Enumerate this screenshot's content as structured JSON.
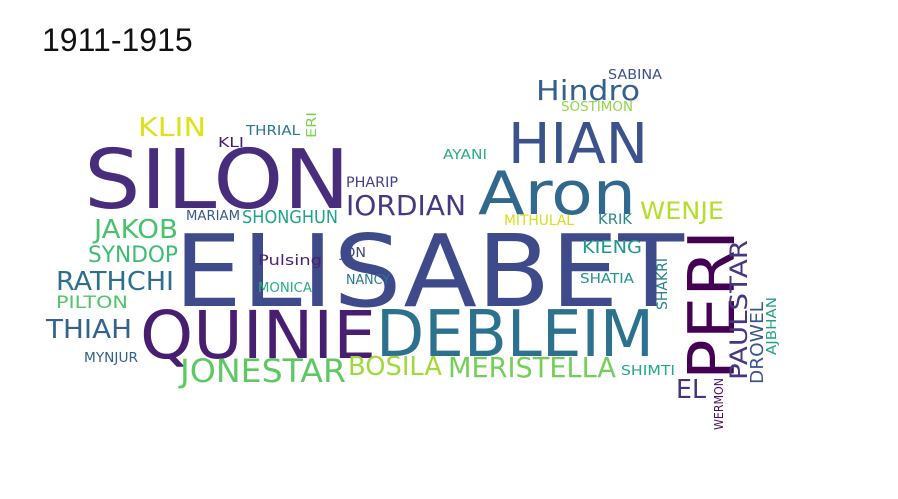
{
  "chart_data": {
    "type": "wordcloud",
    "title": "1911-1915",
    "words": [
      {
        "text": "ELISABET",
        "color": "#3e4a89"
      },
      {
        "text": "SILON",
        "color": "#472d7b"
      },
      {
        "text": "QUINIE",
        "color": "#481f70"
      },
      {
        "text": "DEBLEIM",
        "color": "#2c728e"
      },
      {
        "text": "PERI",
        "color": "#440154"
      },
      {
        "text": "HIAN",
        "color": "#3b528b"
      },
      {
        "text": "Aron",
        "color": "#31688e"
      },
      {
        "text": "JONESTAR",
        "color": "#5ec962"
      },
      {
        "text": "MERISTELLA",
        "color": "#73d056"
      },
      {
        "text": "BOSILA",
        "color": "#a0da39"
      },
      {
        "text": "IORDIAN",
        "color": "#443983"
      },
      {
        "text": "Hindro",
        "color": "#35608d"
      },
      {
        "text": "WENJE",
        "color": "#b5de2b"
      },
      {
        "text": "PAULSTAR",
        "color": "#453781"
      },
      {
        "text": "RATHCHI",
        "color": "#2e6e8e"
      },
      {
        "text": "JAKOB",
        "color": "#4ac16d"
      },
      {
        "text": "THIAH",
        "color": "#33638d"
      },
      {
        "text": "KLIN",
        "color": "#dde318"
      },
      {
        "text": "SYNDOP",
        "color": "#3fbc73"
      },
      {
        "text": "SHONGHUN",
        "color": "#20a386"
      },
      {
        "text": "EL",
        "color": "#46337e"
      },
      {
        "text": "DROWEL",
        "color": "#3a548c"
      },
      {
        "text": "KIENG",
        "color": "#1f9a8a"
      },
      {
        "text": "PILTON",
        "color": "#52c569"
      },
      {
        "text": "Pulsing",
        "color": "#482374"
      },
      {
        "text": "SHAKRI",
        "color": "#25838e"
      },
      {
        "text": "AJBHAN",
        "color": "#1fa188"
      },
      {
        "text": "PHARIP",
        "color": "#424186"
      },
      {
        "text": "MITHULAL",
        "color": "#d2e21b"
      },
      {
        "text": "KRIK",
        "color": "#23898e"
      },
      {
        "text": "MARIAM",
        "color": "#38598c"
      },
      {
        "text": "JON",
        "color": "#404588"
      },
      {
        "text": "NANCY",
        "color": "#2a788e"
      },
      {
        "text": "MONICA",
        "color": "#26ad81"
      },
      {
        "text": "SHATIA",
        "color": "#1f968b"
      },
      {
        "text": "SHIMTI",
        "color": "#22a785"
      },
      {
        "text": "MYNJUR",
        "color": "#34618d"
      },
      {
        "text": "THRIAL",
        "color": "#2a788e"
      },
      {
        "text": "KLI",
        "color": "#48186a"
      },
      {
        "text": "ERI",
        "color": "#7ad151"
      },
      {
        "text": "AYANI",
        "color": "#29af7f"
      },
      {
        "text": "SABINA",
        "color": "#3b528b"
      },
      {
        "text": "SOSTIMON",
        "color": "#8fd744"
      },
      {
        "text": "WERMON",
        "color": "#471365"
      }
    ]
  }
}
